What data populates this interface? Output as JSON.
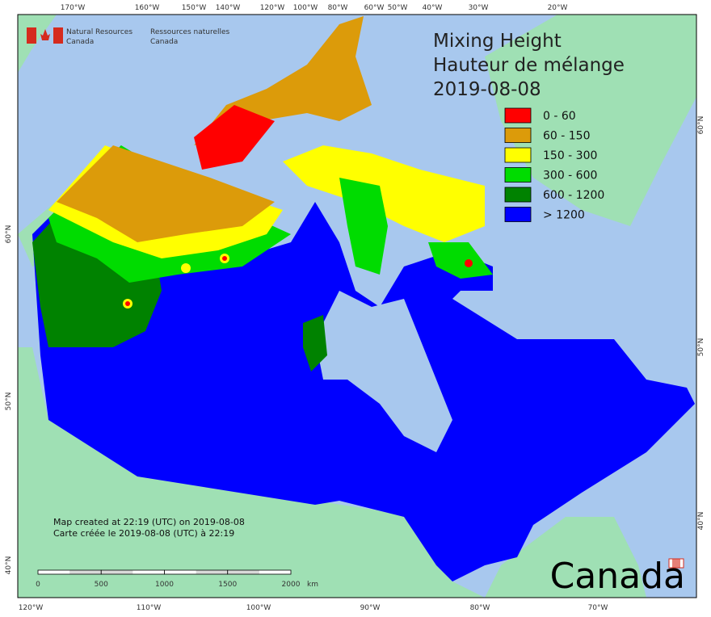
{
  "header": {
    "department_en_1": "Natural Resources",
    "department_en_2": "Canada",
    "department_fr_1": "Ressources naturelles",
    "department_fr_2": "Canada"
  },
  "title": {
    "line1": "Mixing Height",
    "line2": "Hauteur de mélange",
    "date": "2019-08-08"
  },
  "legend": [
    {
      "label": "0 - 60",
      "color": "#ff0000"
    },
    {
      "label": "60 - 150",
      "color": "#dc9b0a"
    },
    {
      "label": "150 - 300",
      "color": "#ffff00"
    },
    {
      "label": "300 - 600",
      "color": "#00dc00"
    },
    {
      "label": "600 - 1200",
      "color": "#008200"
    },
    {
      "label": "> 1200",
      "color": "#0000ff"
    }
  ],
  "graticule": {
    "top": [
      "170°W",
      "160°W",
      "150°W",
      "140°W",
      "120°W",
      "100°W",
      "80°W",
      "60°W",
      "50°W",
      "40°W",
      "30°W",
      "20°W"
    ],
    "bottom": [
      "120°W",
      "110°W",
      "100°W",
      "90°W",
      "80°W",
      "70°W"
    ],
    "left": [
      "60°N",
      "50°N",
      "40°N"
    ],
    "right": [
      "60°N",
      "50°N",
      "40°N"
    ]
  },
  "footer": {
    "created_en": "Map created at 22:19 (UTC) on 2019-08-08",
    "created_fr": "Carte créée le 2019-08-08 (UTC) à 22:19"
  },
  "scale_bar": {
    "labels": [
      "0",
      "500",
      "1000",
      "1500",
      "2000"
    ],
    "unit": "km"
  },
  "wordmark": "Canada"
}
